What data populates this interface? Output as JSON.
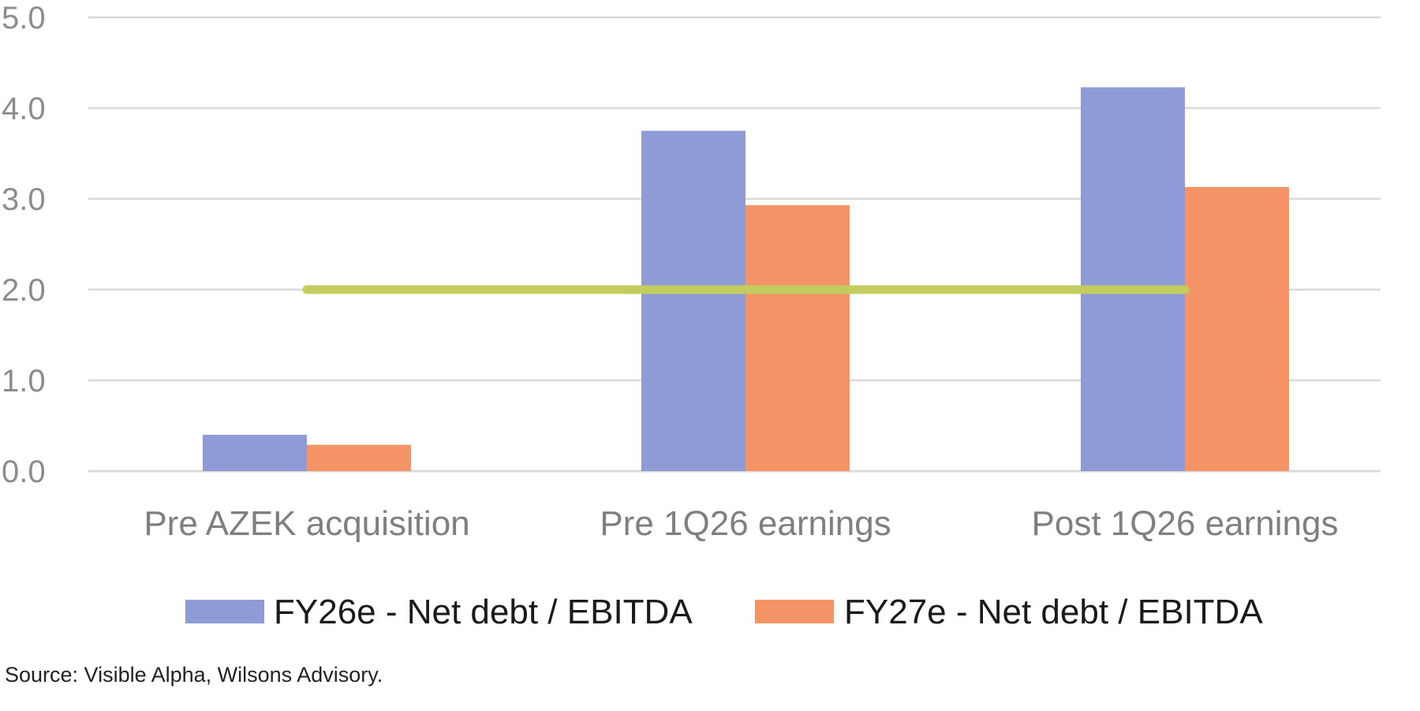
{
  "chart_data": {
    "type": "bar",
    "categories": [
      "Pre AZEK acquisition",
      "Pre 1Q26 earnings",
      "Post 1Q26 earnings"
    ],
    "series": [
      {
        "name": "FY26e - Net debt / EBITDA",
        "values": [
          0.4,
          3.75,
          4.23
        ],
        "color": "#8e9bd6"
      },
      {
        "name": "FY27e - Net debt / EBITDA",
        "values": [
          0.29,
          2.93,
          3.13
        ],
        "color": "#f39366"
      }
    ],
    "reference_line": {
      "value": 2.0,
      "from_category": 0,
      "to_category": 2,
      "color": "#c2cd5e"
    },
    "y_ticks": [
      "0.0",
      "1.0",
      "2.0",
      "3.0",
      "4.0",
      "5.0"
    ],
    "ylim": [
      0,
      5
    ],
    "grid": true,
    "legend_position": "bottom-center",
    "gridline_color": "#d9d9d9"
  },
  "footer": {
    "source": "Source: Visible Alpha, Wilsons Advisory."
  }
}
